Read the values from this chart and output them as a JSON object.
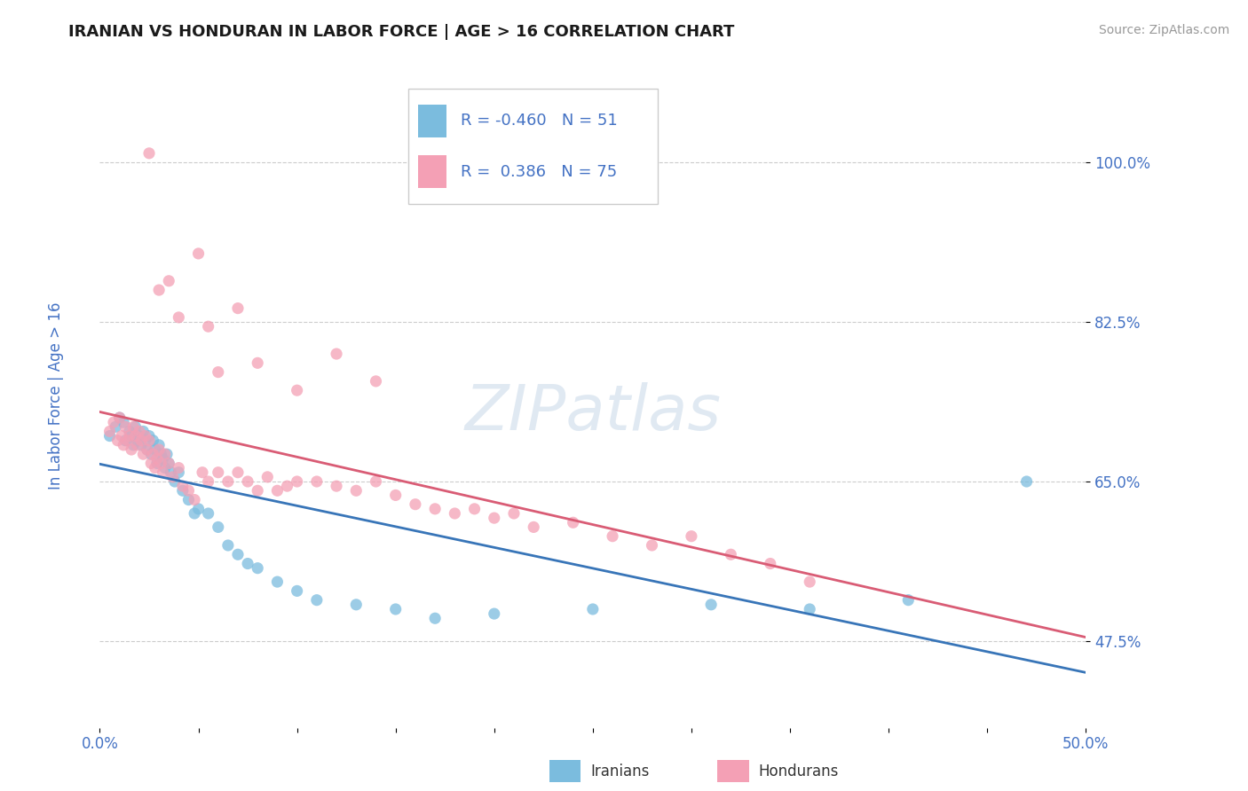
{
  "title": "IRANIAN VS HONDURAN IN LABOR FORCE | AGE > 16 CORRELATION CHART",
  "source_text": "Source: ZipAtlas.com",
  "ylabel": "In Labor Force | Age > 16",
  "xlim": [
    0.0,
    0.5
  ],
  "ylim": [
    0.38,
    1.1
  ],
  "yticks": [
    0.475,
    0.65,
    0.825,
    1.0
  ],
  "ytick_labels": [
    "47.5%",
    "65.0%",
    "82.5%",
    "100.0%"
  ],
  "xticks": [
    0.0,
    0.05,
    0.1,
    0.15,
    0.2,
    0.25,
    0.3,
    0.35,
    0.4,
    0.45,
    0.5
  ],
  "xtick_labels": [
    "0.0%",
    "",
    "",
    "",
    "",
    "",
    "",
    "",
    "",
    "",
    "50.0%"
  ],
  "iranian_color": "#7bbcde",
  "honduran_color": "#f4a0b5",
  "iranian_line_color": "#3875b8",
  "honduran_line_color": "#d95c75",
  "R_iranian": -0.46,
  "N_iranian": 51,
  "R_honduran": 0.386,
  "N_honduran": 75,
  "background_color": "#ffffff",
  "grid_color": "#cccccc",
  "watermark_text": "ZIPatlas",
  "tick_label_color": "#4472c4",
  "legend_label_iranians": "Iranians",
  "legend_label_hondurans": "Hondurans",
  "iranian_scatter_x": [
    0.005,
    0.008,
    0.01,
    0.012,
    0.013,
    0.015,
    0.016,
    0.017,
    0.018,
    0.019,
    0.02,
    0.021,
    0.022,
    0.023,
    0.024,
    0.025,
    0.026,
    0.027,
    0.028,
    0.029,
    0.03,
    0.031,
    0.032,
    0.033,
    0.034,
    0.035,
    0.036,
    0.038,
    0.04,
    0.042,
    0.045,
    0.048,
    0.05,
    0.055,
    0.06,
    0.065,
    0.07,
    0.075,
    0.08,
    0.09,
    0.1,
    0.11,
    0.13,
    0.15,
    0.17,
    0.2,
    0.25,
    0.31,
    0.36,
    0.41,
    0.47
  ],
  "iranian_scatter_y": [
    0.7,
    0.71,
    0.72,
    0.715,
    0.695,
    0.705,
    0.7,
    0.69,
    0.71,
    0.695,
    0.7,
    0.69,
    0.705,
    0.695,
    0.685,
    0.7,
    0.68,
    0.695,
    0.685,
    0.67,
    0.69,
    0.68,
    0.675,
    0.665,
    0.68,
    0.67,
    0.66,
    0.65,
    0.66,
    0.64,
    0.63,
    0.615,
    0.62,
    0.615,
    0.6,
    0.58,
    0.57,
    0.56,
    0.555,
    0.54,
    0.53,
    0.52,
    0.515,
    0.51,
    0.5,
    0.505,
    0.51,
    0.515,
    0.51,
    0.52,
    0.65
  ],
  "honduran_scatter_x": [
    0.005,
    0.007,
    0.009,
    0.01,
    0.011,
    0.012,
    0.013,
    0.014,
    0.015,
    0.016,
    0.017,
    0.018,
    0.019,
    0.02,
    0.021,
    0.022,
    0.023,
    0.024,
    0.025,
    0.026,
    0.027,
    0.028,
    0.029,
    0.03,
    0.031,
    0.032,
    0.033,
    0.035,
    0.037,
    0.04,
    0.042,
    0.045,
    0.048,
    0.052,
    0.055,
    0.06,
    0.065,
    0.07,
    0.075,
    0.08,
    0.085,
    0.09,
    0.095,
    0.1,
    0.11,
    0.12,
    0.13,
    0.14,
    0.15,
    0.16,
    0.17,
    0.18,
    0.19,
    0.2,
    0.21,
    0.22,
    0.24,
    0.26,
    0.28,
    0.3,
    0.32,
    0.34,
    0.36,
    0.06,
    0.08,
    0.1,
    0.12,
    0.14,
    0.055,
    0.07,
    0.03,
    0.04,
    0.025,
    0.035,
    0.05
  ],
  "honduran_scatter_y": [
    0.705,
    0.715,
    0.695,
    0.72,
    0.7,
    0.69,
    0.71,
    0.695,
    0.7,
    0.685,
    0.71,
    0.7,
    0.69,
    0.705,
    0.695,
    0.68,
    0.7,
    0.685,
    0.695,
    0.67,
    0.68,
    0.665,
    0.675,
    0.685,
    0.67,
    0.66,
    0.68,
    0.67,
    0.655,
    0.665,
    0.645,
    0.64,
    0.63,
    0.66,
    0.65,
    0.66,
    0.65,
    0.66,
    0.65,
    0.64,
    0.655,
    0.64,
    0.645,
    0.65,
    0.65,
    0.645,
    0.64,
    0.65,
    0.635,
    0.625,
    0.62,
    0.615,
    0.62,
    0.61,
    0.615,
    0.6,
    0.605,
    0.59,
    0.58,
    0.59,
    0.57,
    0.56,
    0.54,
    0.77,
    0.78,
    0.75,
    0.79,
    0.76,
    0.82,
    0.84,
    0.86,
    0.83,
    1.01,
    0.87,
    0.9
  ]
}
